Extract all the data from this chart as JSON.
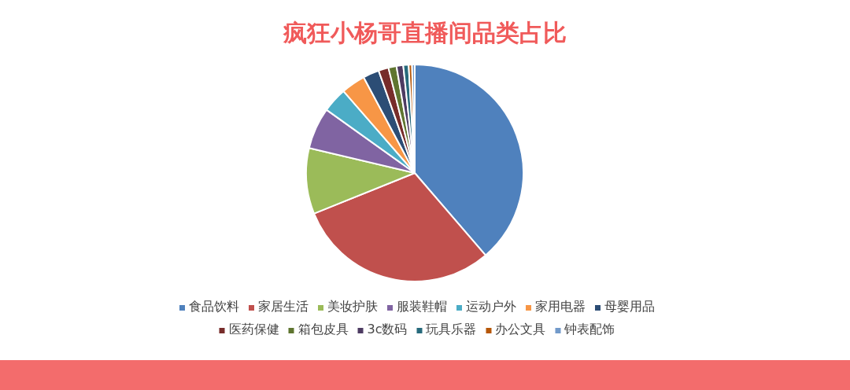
{
  "chart_data": {
    "type": "pie",
    "title": "疯狂小杨哥直播间品类占比",
    "categories": [
      "食品饮料",
      "家居生活",
      "美妆护肤",
      "服装鞋帽",
      "运动户外",
      "家用电器",
      "母婴用品",
      "医药保健",
      "箱包皮具",
      "3c数码",
      "玩具乐器",
      "办公文具",
      "钟表配饰"
    ],
    "values": [
      38.7,
      30.2,
      9.8,
      6.2,
      3.7,
      3.6,
      2.4,
      1.5,
      1.2,
      1.0,
      0.8,
      0.5,
      0.4
    ],
    "colors": [
      "#4f81bd",
      "#c0504d",
      "#9bbb59",
      "#8064a2",
      "#4bacc6",
      "#f79646",
      "#2c4d75",
      "#772c2a",
      "#5f7530",
      "#4d3b62",
      "#276a7c",
      "#b65708",
      "#729aca"
    ],
    "legend": "bottom"
  }
}
